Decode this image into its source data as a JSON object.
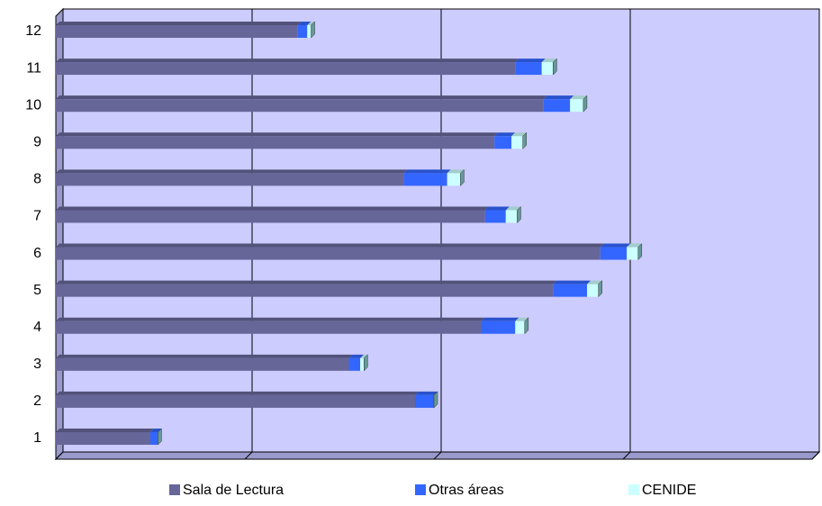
{
  "chart_data": {
    "type": "bar",
    "orientation": "horizontal",
    "stacked": true,
    "categories": [
      "1",
      "2",
      "3",
      "4",
      "5",
      "6",
      "7",
      "8",
      "9",
      "10",
      "11",
      "12"
    ],
    "series": [
      {
        "name": "Sala de Lectura",
        "color": "#666699",
        "values": [
          50,
          190,
          155,
          225,
          263,
          288,
          227,
          184,
          232,
          258,
          243,
          128
        ]
      },
      {
        "name": "Otras áreas",
        "color": "#3366ff",
        "values": [
          4,
          10,
          6,
          18,
          18,
          14,
          11,
          23,
          9,
          14,
          14,
          5
        ]
      },
      {
        "name": "CENIDE",
        "color": "#ccffff",
        "values": [
          0,
          0,
          2,
          5,
          6,
          6,
          6,
          7,
          6,
          7,
          6,
          2
        ]
      }
    ],
    "xlim": [
      0,
      400
    ],
    "xticks": [
      0,
      100,
      200,
      300,
      400
    ],
    "grid": true,
    "background": "#ccccff"
  }
}
